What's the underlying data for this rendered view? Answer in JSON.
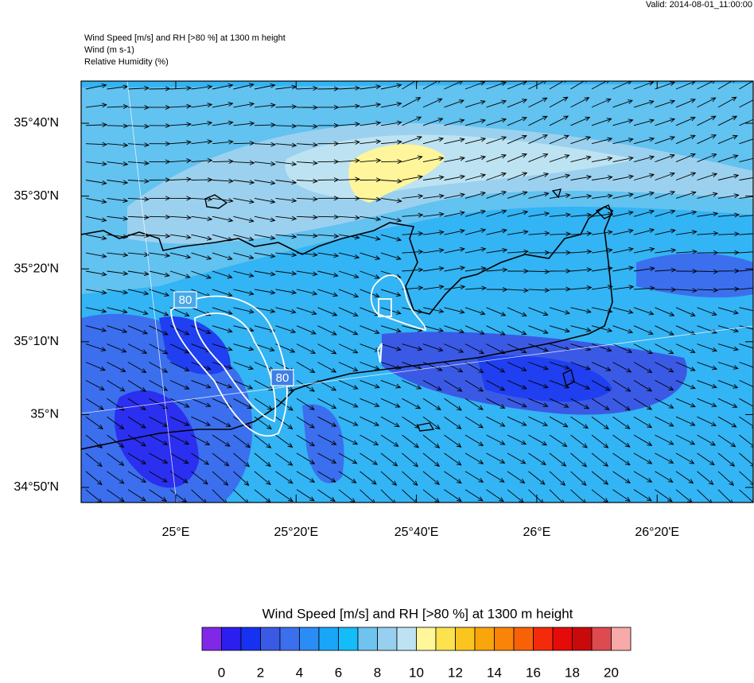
{
  "header": {
    "valid": "Valid: 2014-08-01_11:00:00",
    "lines": [
      "Wind Speed [m/s] and RH [>80 %] at 1300 m height",
      "Wind   (m s-1)",
      "Relative Humidity   (%)"
    ]
  },
  "map": {
    "lat_labels": [
      "35°40'N",
      "35°30'N",
      "35°20'N",
      "35°10'N",
      "35°N",
      "34°50'N"
    ],
    "lon_labels": [
      "25°E",
      "25°20'E",
      "25°40'E",
      "26°E",
      "26°20'E"
    ],
    "contour_labels": [
      "80",
      "80"
    ]
  },
  "colorbar": {
    "title": "Wind Speed [m/s] and RH [>80 %] at 1300 m height",
    "colors": [
      "#8028e8",
      "#2b1ff0",
      "#1632f0",
      "#3a5ae6",
      "#3b6fee",
      "#2a8df5",
      "#19a6f8",
      "#14bcf8",
      "#6fc3ef",
      "#96cfef",
      "#bde3f2",
      "#fff79a",
      "#fbe24e",
      "#fbc51f",
      "#f9a50c",
      "#fa8407",
      "#f96107",
      "#f42b0b",
      "#e50b0b",
      "#c80a0a",
      "#dd4a50",
      "#f7aaa8"
    ],
    "labels": [
      "0",
      "2",
      "4",
      "6",
      "8",
      "10",
      "12",
      "14",
      "16",
      "18",
      "20"
    ]
  }
}
